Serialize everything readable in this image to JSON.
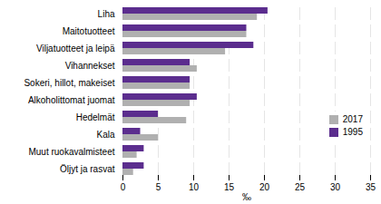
{
  "chart_data": {
    "type": "bar",
    "orientation": "horizontal",
    "categories": [
      "Liha",
      "Maitotuotteet",
      "Viljatuotteet ja leipä",
      "Vihannekset",
      "Sokeri, hillot, makeiset",
      "Alkoholittomat juomat",
      "Hedelmät",
      "Kala",
      "Muut ruokavalmisteet",
      "Öljyt ja rasvat"
    ],
    "series": [
      {
        "name": "2017",
        "color": "#b0b0b0",
        "values": [
          19.0,
          17.5,
          14.5,
          10.5,
          9.5,
          9.5,
          9.0,
          5.0,
          2.0,
          1.5
        ]
      },
      {
        "name": "1995",
        "color": "#5b2d8e",
        "values": [
          20.5,
          17.5,
          18.5,
          9.5,
          9.5,
          10.5,
          5.0,
          2.5,
          3.0,
          3.0
        ]
      }
    ],
    "xlabel": "‰",
    "xlim": [
      0,
      35
    ],
    "xticks": [
      0,
      5,
      10,
      15,
      20,
      25,
      30,
      35
    ],
    "grid": true,
    "legend": "lower right"
  }
}
